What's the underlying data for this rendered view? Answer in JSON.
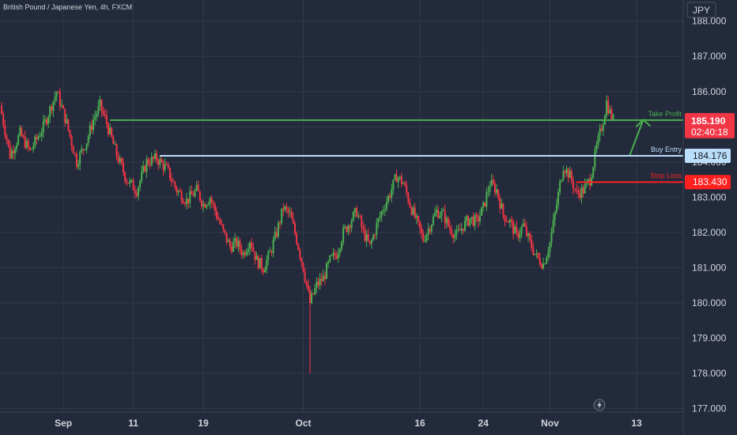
{
  "chart_data": {
    "type": "candlestick",
    "title": "British Pound / Japanese Yen, 4h, FXCM",
    "currency": "JPY",
    "timer": "02:40:18",
    "ylim": [
      176.9,
      188.6
    ],
    "y_ticks": [
      188.0,
      187.0,
      186.0,
      185.0,
      184.0,
      183.0,
      182.0,
      181.0,
      180.0,
      179.0,
      178.0,
      177.0
    ],
    "y_tick_labels": [
      "188.000",
      "187.000",
      "186.000",
      "185.000",
      "184.000",
      "183.000",
      "182.000",
      "181.000",
      "180.000",
      "179.000",
      "178.000",
      "177.000"
    ],
    "x_ticks": [
      {
        "label": "Sep",
        "x": 19
      },
      {
        "label": "11",
        "x": 40
      },
      {
        "label": "19",
        "x": 61
      },
      {
        "label": "Oct",
        "x": 91
      },
      {
        "label": "16",
        "x": 126
      },
      {
        "label": "24",
        "x": 145
      },
      {
        "label": "Nov",
        "x": 165
      },
      {
        "label": "13",
        "x": 191
      }
    ],
    "last_price": 185.19,
    "levels": [
      {
        "name": "Take Profit",
        "value": 185.19,
        "label": "185.190",
        "color": "#4caf50",
        "label_bg": "#f23645"
      },
      {
        "name": "Buy Entry",
        "value": 184.176,
        "label": "184.176",
        "color": "#bbdefb",
        "label_bg": "#bbdefb"
      },
      {
        "name": "Stop Loss",
        "value": 183.43,
        "label": "183.430",
        "color": "#ff2020",
        "label_bg": "#ff2020"
      }
    ],
    "colors": {
      "background": "#222a3b",
      "up": "#4caf50",
      "down": "#f23645",
      "grid": "#323a4b",
      "arrow": "#4caf50"
    },
    "ohlc_points": [
      [
        0,
        185.6
      ],
      [
        3,
        184.2
      ],
      [
        6,
        184.8
      ],
      [
        9,
        184.3
      ],
      [
        13,
        185.0
      ],
      [
        17,
        186.0
      ],
      [
        20,
        185.1
      ],
      [
        23,
        184.0
      ],
      [
        26,
        184.6
      ],
      [
        28,
        185.2
      ],
      [
        30,
        185.6
      ],
      [
        32,
        185.1
      ],
      [
        35,
        184.2
      ],
      [
        38,
        183.5
      ],
      [
        41,
        183.2
      ],
      [
        44,
        184.0
      ],
      [
        47,
        184.1
      ],
      [
        50,
        183.8
      ],
      [
        53,
        183.2
      ],
      [
        56,
        182.9
      ],
      [
        59,
        183.2
      ],
      [
        61,
        182.8
      ],
      [
        63,
        183.0
      ],
      [
        65,
        182.5
      ],
      [
        67,
        182.0
      ],
      [
        69,
        181.6
      ],
      [
        71,
        181.7
      ],
      [
        73,
        181.4
      ],
      [
        75,
        181.8
      ],
      [
        77,
        181.2
      ],
      [
        79,
        181.0
      ],
      [
        81,
        181.4
      ],
      [
        83,
        182.0
      ],
      [
        85,
        182.7
      ],
      [
        87,
        182.5
      ],
      [
        89,
        181.8
      ],
      [
        91,
        181.0
      ],
      [
        93,
        180.0
      ],
      [
        95,
        180.5
      ],
      [
        97,
        180.7
      ],
      [
        99,
        181.2
      ],
      [
        101,
        181.4
      ],
      [
        103,
        182.0
      ],
      [
        105,
        182.3
      ],
      [
        107,
        182.6
      ],
      [
        109,
        182.0
      ],
      [
        111,
        181.6
      ],
      [
        113,
        182.2
      ],
      [
        115,
        182.7
      ],
      [
        117,
        183.1
      ],
      [
        119,
        183.6
      ],
      [
        121,
        183.4
      ],
      [
        123,
        182.8
      ],
      [
        125,
        182.3
      ],
      [
        127,
        181.8
      ],
      [
        129,
        182.2
      ],
      [
        131,
        182.6
      ],
      [
        133,
        182.5
      ],
      [
        135,
        182.1
      ],
      [
        137,
        181.9
      ],
      [
        139,
        182.2
      ],
      [
        141,
        182.4
      ],
      [
        143,
        182.3
      ],
      [
        145,
        182.7
      ],
      [
        147,
        183.4
      ],
      [
        149,
        183.2
      ],
      [
        151,
        182.5
      ],
      [
        153,
        182.3
      ],
      [
        155,
        181.9
      ],
      [
        157,
        182.2
      ],
      [
        159,
        181.7
      ],
      [
        161,
        181.3
      ],
      [
        163,
        181.1
      ],
      [
        165,
        181.7
      ],
      [
        167,
        182.8
      ],
      [
        169,
        183.9
      ],
      [
        171,
        183.6
      ],
      [
        173,
        183.1
      ],
      [
        175,
        183.2
      ],
      [
        177,
        183.5
      ],
      [
        179,
        184.4
      ],
      [
        181,
        185.2
      ],
      [
        182,
        185.7
      ],
      [
        183,
        185.4
      ],
      [
        184,
        185.2
      ]
    ],
    "arrow": {
      "from": [
        189,
        184.2
      ],
      "to": [
        193,
        185.2
      ]
    }
  }
}
